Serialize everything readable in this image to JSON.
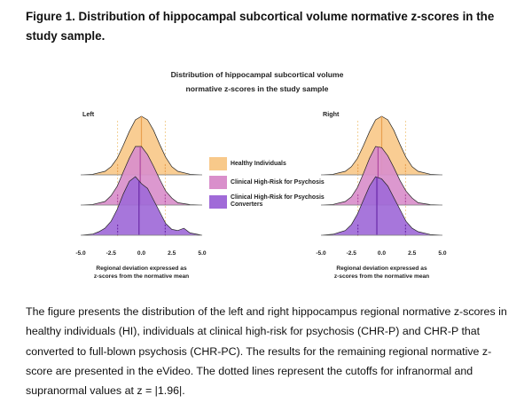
{
  "figure_caption": "Figure 1. Distribution of hippocampal subcortical volume normative z-scores in the study sample.",
  "paragraph": "The figure presents the distribution of the left and right hippocampus regional normative z-scores in healthy individuals (HI), individuals at clinical high-risk for psychosis (CHR-P) and CHR-P that converted to full-blown psychosis (CHR-PC). The results for the remaining regional normative z-score are presented in the eVideo. The dotted lines represent the cutoffs for infranormal and supranormal values at z = |1.96|.",
  "chart_data": {
    "type": "ridgeline",
    "title_lines": [
      "Distribution of hippocampal subcortical volume",
      "normative z-scores in the study sample"
    ],
    "xlabel_lines": [
      "Regional deviation expressed as",
      "z-scores from the normative mean"
    ],
    "xlim": [
      -5.0,
      5.0
    ],
    "xticks": [
      -5.0,
      -2.5,
      0.0,
      2.5,
      5.0
    ],
    "xtick_labels": [
      "-5.0",
      "-2.5",
      "0.0",
      "2.5",
      "5.0"
    ],
    "cutoffs": [
      -1.96,
      1.96
    ],
    "legend_placement": "center",
    "series": [
      {
        "name": "Healthy Individuals",
        "color": "#f8c98a",
        "line_color": "#e8a050"
      },
      {
        "name": "Clinical High-Risk for Psychosis",
        "color": "#d98fcb",
        "line_color": "#b04aa0"
      },
      {
        "name": "Clinical High-Risk for Psychosis Converters",
        "color": "#a06ad8",
        "line_color": "#6a2aa8"
      }
    ],
    "panels": [
      {
        "label": "Left",
        "distributions": [
          {
            "series": "Healthy Individuals",
            "x": [
              -5,
              -4,
              -3,
              -2.5,
              -2,
              -1.5,
              -1,
              -0.5,
              0,
              0.5,
              1,
              1.5,
              2,
              2.5,
              3,
              4,
              5
            ],
            "density": [
              0,
              0.005,
              0.03,
              0.07,
              0.14,
              0.25,
              0.37,
              0.47,
              0.5,
              0.47,
              0.38,
              0.26,
              0.15,
              0.07,
              0.03,
              0.005,
              0
            ],
            "median": 0.0
          },
          {
            "series": "Clinical High-Risk for Psychosis",
            "x": [
              -5,
              -4,
              -3,
              -2.5,
              -2,
              -1.5,
              -1,
              -0.5,
              0,
              0.5,
              1,
              1.5,
              2,
              2.5,
              3,
              4,
              5
            ],
            "density": [
              0,
              0.005,
              0.03,
              0.08,
              0.16,
              0.28,
              0.4,
              0.5,
              0.5,
              0.43,
              0.33,
              0.22,
              0.12,
              0.06,
              0.02,
              0.004,
              0
            ],
            "median": -0.1
          },
          {
            "series": "Clinical High-Risk for Psychosis Converters",
            "x": [
              -5,
              -4,
              -3.5,
              -3,
              -2.5,
              -2,
              -1.5,
              -1,
              -0.5,
              0,
              0.5,
              1,
              1.5,
              2,
              2.5,
              3,
              3.5,
              4,
              5
            ],
            "density": [
              0,
              0.01,
              0.03,
              0.06,
              0.12,
              0.22,
              0.35,
              0.46,
              0.5,
              0.44,
              0.4,
              0.3,
              0.2,
              0.1,
              0.05,
              0.04,
              0.06,
              0.02,
              0
            ],
            "median": -0.2
          }
        ]
      },
      {
        "label": "Right",
        "distributions": [
          {
            "series": "Healthy Individuals",
            "x": [
              -5,
              -4,
              -3,
              -2.5,
              -2,
              -1.5,
              -1,
              -0.5,
              0,
              0.5,
              1,
              1.5,
              2,
              2.5,
              3,
              4,
              5
            ],
            "density": [
              0,
              0.005,
              0.03,
              0.07,
              0.14,
              0.25,
              0.37,
              0.47,
              0.5,
              0.47,
              0.38,
              0.26,
              0.15,
              0.07,
              0.03,
              0.005,
              0
            ],
            "median": 0.0
          },
          {
            "series": "Clinical High-Risk for Psychosis",
            "x": [
              -5,
              -4,
              -3,
              -2.5,
              -2,
              -1.5,
              -1,
              -0.5,
              0,
              0.5,
              1,
              1.5,
              2,
              2.5,
              3,
              4,
              5
            ],
            "density": [
              0,
              0.005,
              0.03,
              0.07,
              0.15,
              0.27,
              0.4,
              0.5,
              0.49,
              0.42,
              0.32,
              0.21,
              0.12,
              0.06,
              0.02,
              0.004,
              0
            ],
            "median": -0.3
          },
          {
            "series": "Clinical High-Risk for Psychosis Converters",
            "x": [
              -5,
              -4,
              -3,
              -2.5,
              -2,
              -1.5,
              -1,
              -0.5,
              0,
              0.5,
              1,
              1.5,
              2,
              2.5,
              3,
              4,
              5
            ],
            "density": [
              0,
              0.008,
              0.04,
              0.09,
              0.18,
              0.3,
              0.42,
              0.5,
              0.48,
              0.42,
              0.32,
              0.22,
              0.12,
              0.06,
              0.03,
              0.006,
              0
            ],
            "median": -0.4
          }
        ]
      }
    ]
  }
}
